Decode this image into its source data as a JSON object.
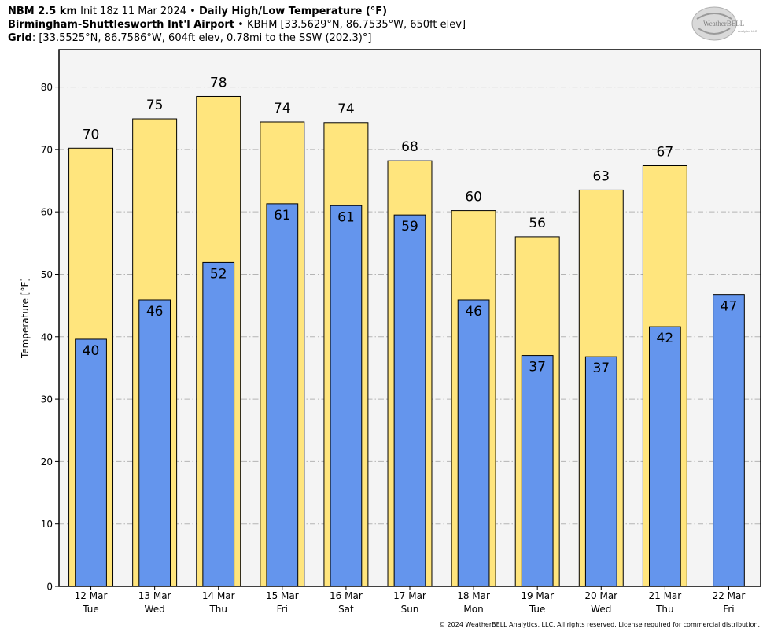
{
  "header": {
    "line1": {
      "model": "NBM 2.5 km",
      "init": "Init 18z 11 Mar 2024",
      "sep": "•",
      "product": "Daily High/Low Temperature (°F)"
    },
    "line2": {
      "station": "Birmingham-Shuttlesworth Int'l Airport",
      "sep": "•",
      "details": "KBHM [33.5629°N, 86.7535°W, 650ft elev]"
    },
    "line3": {
      "label": "Grid",
      "details": ": [33.5525°N, 86.7586°W, 604ft elev, 0.78mi to the SSW (202.3)°]"
    }
  },
  "logo": {
    "text_main": "WeatherBELL",
    "text_sub": "Analytics LLC"
  },
  "footer": {
    "copyright": "© 2024 WeatherBELL Analytics, LLC. All rights reserved. License required for commercial distribution."
  },
  "chart_data": {
    "type": "bar",
    "title": "Daily High/Low Temperature (°F)",
    "ylabel": "Temperature [°F]",
    "xlabel": "",
    "ylim": [
      0,
      86
    ],
    "yticks": [
      0,
      10,
      20,
      30,
      40,
      50,
      60,
      70,
      80
    ],
    "grid": true,
    "categories": [
      {
        "date": "12 Mar",
        "day": "Tue"
      },
      {
        "date": "13 Mar",
        "day": "Wed"
      },
      {
        "date": "14 Mar",
        "day": "Thu"
      },
      {
        "date": "15 Mar",
        "day": "Fri"
      },
      {
        "date": "16 Mar",
        "day": "Sat"
      },
      {
        "date": "17 Mar",
        "day": "Sun"
      },
      {
        "date": "18 Mar",
        "day": "Mon"
      },
      {
        "date": "19 Mar",
        "day": "Tue"
      },
      {
        "date": "20 Mar",
        "day": "Wed"
      },
      {
        "date": "21 Mar",
        "day": "Thu"
      },
      {
        "date": "22 Mar",
        "day": "Fri"
      }
    ],
    "series": [
      {
        "values": [
          70.2,
          74.9,
          78.5,
          74.4,
          74.3,
          68.2,
          60.2,
          56.0,
          63.5,
          67.4,
          null
        ],
        "labels": [
          "70",
          "75",
          "78",
          "74",
          "74",
          "68",
          "60",
          "56",
          "63",
          "67",
          ""
        ],
        "color": "#FFE57D"
      },
      {
        "values": [
          39.6,
          45.9,
          51.9,
          61.3,
          61.0,
          59.5,
          45.9,
          37.0,
          36.8,
          41.6,
          46.7
        ],
        "labels": [
          "40",
          "46",
          "52",
          "61",
          "61",
          "59",
          "46",
          "37",
          "37",
          "42",
          "47"
        ],
        "color": "#6495ED"
      }
    ]
  }
}
